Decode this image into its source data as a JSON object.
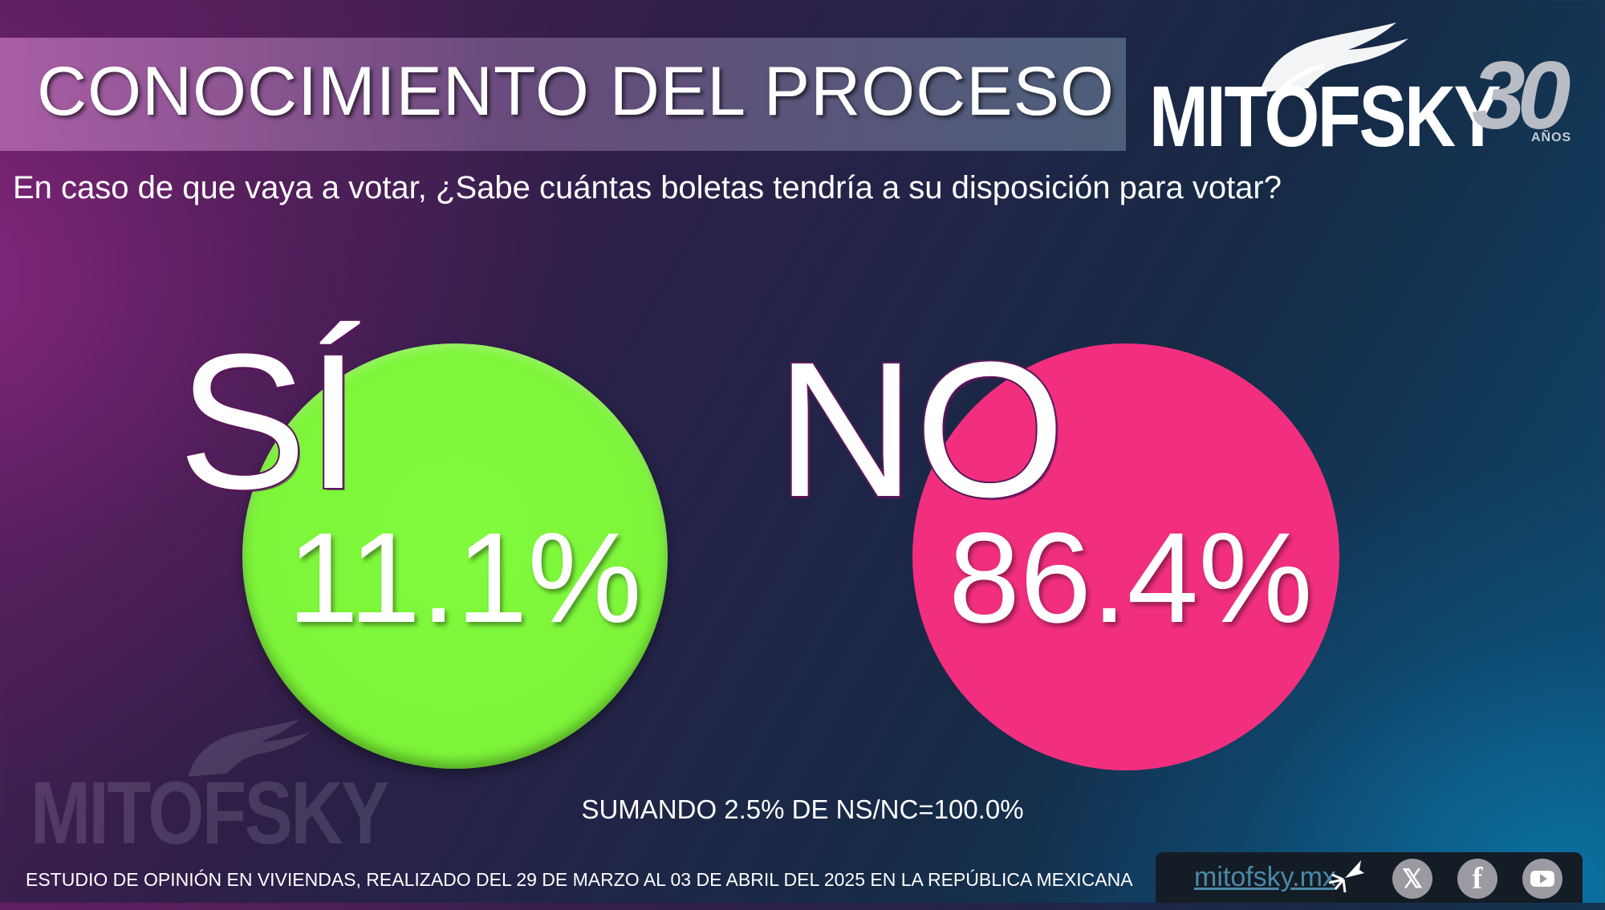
{
  "header": {
    "title": "CONOCIMIENTO DEL PROCESO"
  },
  "logo": {
    "brand": "MITOFSKY",
    "anniversary_number": "30",
    "anniversary_word": "AÑOS"
  },
  "question": "En caso de que vaya a votar, ¿Sabe cuántas boletas tendría a su disposición para votar?",
  "results": [
    {
      "label": "SÍ",
      "value": 11.1,
      "display": "11.1%",
      "color": "#7df43a"
    },
    {
      "label": "NO",
      "value": 86.4,
      "display": "86.4%",
      "color": "#f22f7f"
    }
  ],
  "sum_note": "SUMANDO 2.5% DE NS/NC=100.0%",
  "watermark": {
    "brand": "MITOFSKY"
  },
  "footer": {
    "study_note": "ESTUDIO DE OPINIÓN EN VIVIENDAS, REALIZADO DEL 29 DE MARZO AL 03 DE ABRIL DEL 2025 EN LA REPÚBLICA MEXICANA",
    "website": "mitofsky.mx",
    "social_icons": [
      "x-icon",
      "facebook-icon",
      "youtube-icon"
    ]
  }
}
